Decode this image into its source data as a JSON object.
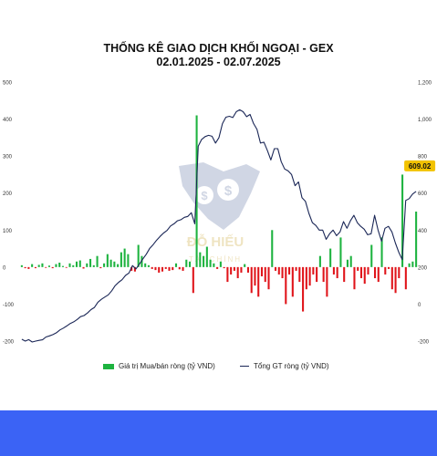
{
  "chart_data": {
    "type": "bar+line",
    "title_line1": "THỐNG KÊ GIAO DỊCH KHỐI NGOẠI - GEX",
    "title_line2": "02.01.2025 - 02.07.2025",
    "left_axis": {
      "ticks": [
        "-200",
        "-100",
        "0",
        "100",
        "200",
        "300",
        "400",
        "500"
      ],
      "ylim": [
        -200,
        500
      ]
    },
    "right_axis": {
      "ticks": [
        "-200",
        "0",
        "200",
        "400",
        "600",
        "800",
        "1,000",
        "1,200"
      ],
      "ylim": [
        -200,
        1200
      ]
    },
    "series": [
      {
        "name": "Giá trị Mua/bán ròng (tỷ VND)",
        "type": "bar",
        "axis": "left",
        "values": [
          5,
          -3,
          -5,
          8,
          -3,
          6,
          10,
          -2,
          4,
          -3,
          8,
          12,
          3,
          -2,
          10,
          5,
          15,
          18,
          -4,
          10,
          22,
          5,
          30,
          -3,
          10,
          35,
          20,
          15,
          8,
          40,
          50,
          35,
          -10,
          -12,
          60,
          30,
          10,
          5,
          -5,
          -8,
          -15,
          -12,
          -5,
          -10,
          -8,
          10,
          -6,
          -10,
          20,
          15,
          -70,
          410,
          40,
          30,
          55,
          20,
          10,
          -5,
          15,
          -3,
          -40,
          -20,
          -10,
          -30,
          -15,
          8,
          -15,
          -70,
          -50,
          -80,
          -25,
          -40,
          -60,
          100,
          -10,
          -20,
          -30,
          -100,
          -20,
          -80,
          -10,
          -40,
          -120,
          -60,
          -50,
          -20,
          -40,
          30,
          -40,
          -80,
          50,
          -20,
          -30,
          80,
          -40,
          20,
          30,
          -60,
          -10,
          -30,
          -45,
          -20,
          60,
          -30,
          -40,
          80,
          -20,
          -5,
          -60,
          -70,
          -30,
          250,
          -60,
          10,
          15,
          150
        ],
        "color_positive": "#1db33f",
        "color_negative": "#e0141a"
      },
      {
        "name": "Tổng GT ròng (tỷ VND)",
        "type": "line",
        "axis": "right",
        "values": [
          -190,
          -200,
          -192,
          -205,
          -200,
          -196,
          -193,
          -178,
          -172,
          -165,
          -155,
          -140,
          -130,
          -118,
          -105,
          -96,
          -83,
          -68,
          -62,
          -48,
          -30,
          -18,
          10,
          26,
          38,
          50,
          72,
          100,
          118,
          132,
          155,
          168,
          208,
          190,
          216,
          244,
          270,
          302,
          322,
          346,
          366,
          384,
          398,
          422,
          434,
          450,
          456,
          469,
          474,
          494,
          434,
          854,
          890,
          905,
          912,
          907,
          870,
          900,
          975,
          1010,
          1015,
          1008,
          1040,
          1050,
          1040,
          1013,
          1025,
          976,
          944,
          870,
          875,
          830,
          779,
          840,
          840,
          770,
          730,
          720,
          700,
          640,
          660,
          575,
          555,
          490,
          440,
          425,
          400,
          400,
          350,
          380,
          400,
          370,
          390,
          446,
          410,
          450,
          480,
          440,
          420,
          405,
          375,
          380,
          480,
          400,
          340,
          410,
          420,
          390,
          330,
          280,
          240,
          560,
          570,
          595,
          609.02
        ],
        "color": "#1a2656",
        "last_value_label": "609.02",
        "last_value_label_color": "#f2c200"
      }
    ],
    "grid": false,
    "legend_position": "bottom-center"
  },
  "footer": {
    "band_color": "#3b63f5"
  },
  "watermark": {
    "logo_icon": "shield-dollar-icon",
    "text": "ĐỖ HIẾU",
    "subtext": "TÀI CHÍNH"
  }
}
